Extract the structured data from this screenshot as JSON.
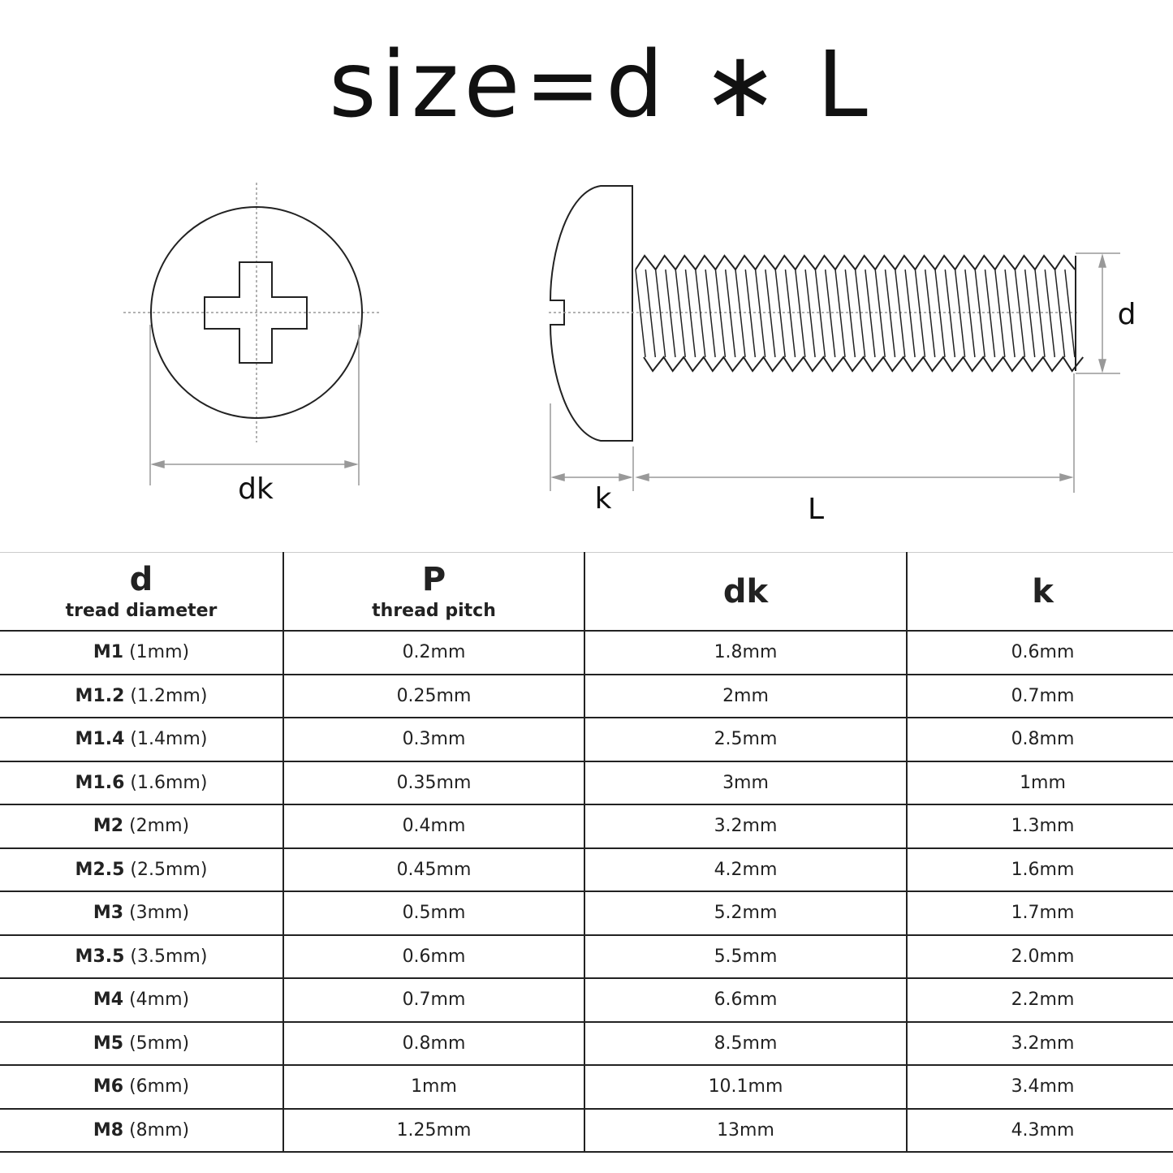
{
  "title": "size=d ∗ L",
  "diagram": {
    "labels": {
      "dk": "dk",
      "k": "k",
      "L": "L",
      "d": "d"
    }
  },
  "table": {
    "headers": [
      {
        "symbol": "d",
        "sub": "tread diameter"
      },
      {
        "symbol": "P",
        "sub": "thread pitch"
      },
      {
        "symbol": "dk",
        "sub": ""
      },
      {
        "symbol": "k",
        "sub": ""
      }
    ],
    "rows": [
      {
        "size": "M1",
        "mm": "(1mm)",
        "p": "0.2mm",
        "dk": "1.8mm",
        "k": "0.6mm"
      },
      {
        "size": "M1.2",
        "mm": "(1.2mm)",
        "p": "0.25mm",
        "dk": "2mm",
        "k": "0.7mm"
      },
      {
        "size": "M1.4",
        "mm": "(1.4mm)",
        "p": "0.3mm",
        "dk": "2.5mm",
        "k": "0.8mm"
      },
      {
        "size": "M1.6",
        "mm": "(1.6mm)",
        "p": "0.35mm",
        "dk": "3mm",
        "k": "1mm"
      },
      {
        "size": "M2",
        "mm": "(2mm)",
        "p": "0.4mm",
        "dk": "3.2mm",
        "k": "1.3mm"
      },
      {
        "size": "M2.5",
        "mm": "(2.5mm)",
        "p": "0.45mm",
        "dk": "4.2mm",
        "k": "1.6mm"
      },
      {
        "size": "M3",
        "mm": "(3mm)",
        "p": "0.5mm",
        "dk": "5.2mm",
        "k": "1.7mm"
      },
      {
        "size": "M3.5",
        "mm": "(3.5mm)",
        "p": "0.6mm",
        "dk": "5.5mm",
        "k": "2.0mm"
      },
      {
        "size": "M4",
        "mm": "(4mm)",
        "p": "0.7mm",
        "dk": "6.6mm",
        "k": "2.2mm"
      },
      {
        "size": "M5",
        "mm": "(5mm)",
        "p": "0.8mm",
        "dk": "8.5mm",
        "k": "3.2mm"
      },
      {
        "size": "M6",
        "mm": "(6mm)",
        "p": "1mm",
        "dk": "10.1mm",
        "k": "3.4mm"
      },
      {
        "size": "M8",
        "mm": "(8mm)",
        "p": "1.25mm",
        "dk": "13mm",
        "k": "4.3mm"
      }
    ]
  }
}
